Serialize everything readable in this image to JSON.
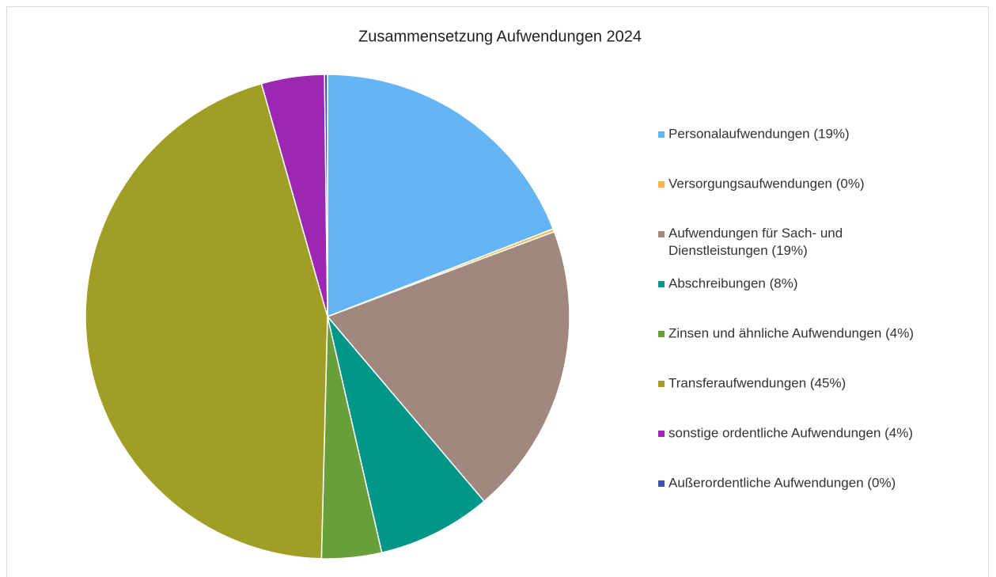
{
  "chart_data": {
    "type": "pie",
    "title": "Zusammensetzung  Aufwendungen 2024",
    "categories": [
      "Personalaufwendungen (19%)",
      "Versorgungsaufwendungen (0%)",
      "Aufwendungen für Sach- und Dienstleistungen (19%)",
      "Abschreibungen (8%)",
      "Zinsen und ähnliche Aufwendungen (4%)",
      "Transferaufwendungen (45%)",
      "sonstige ordentliche Aufwendungen (4%)",
      "Außerordentliche Aufwendungen (0%)"
    ],
    "values": [
      19.1,
      0.2,
      19.5,
      7.6,
      4.0,
      45.2,
      4.2,
      0.2
    ],
    "colors": [
      "#63b5f5",
      "#f9b74b",
      "#a1887f",
      "#009688",
      "#689f38",
      "#a19e26",
      "#9c27b0",
      "#3f51b5"
    ],
    "legend": "right"
  }
}
